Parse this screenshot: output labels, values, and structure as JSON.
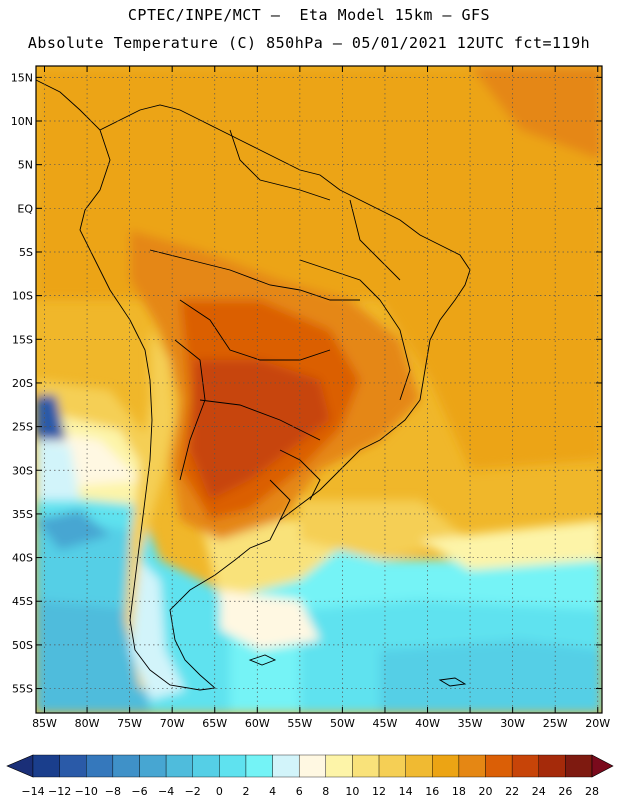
{
  "header": {
    "line1": "CPTEC/INPE/MCT –  Eta Model 15km – GFS",
    "line2": "Absolute Temperature (C) 850hPa – 05/01/2021 12UTC fct=119h"
  },
  "map": {
    "lat_labels": [
      "15N",
      "10N",
      "5N",
      "EQ",
      "5S",
      "10S",
      "15S",
      "20S",
      "25S",
      "30S",
      "35S",
      "40S",
      "45S",
      "50S",
      "55S"
    ],
    "lon_labels": [
      "85W",
      "80W",
      "75W",
      "70W",
      "65W",
      "60W",
      "55W",
      "50W",
      "45W",
      "40W",
      "35W",
      "30W",
      "25W",
      "20W"
    ]
  },
  "colorbar": {
    "labels": [
      "-14",
      "-12",
      "-10",
      "-8",
      "-6",
      "-4",
      "-2",
      "0",
      "2",
      "4",
      "6",
      "8",
      "10",
      "12",
      "14",
      "16",
      "18",
      "20",
      "22",
      "24",
      "26",
      "28"
    ],
    "colors": [
      "#1a3e8c",
      "#2a5aa8",
      "#3578bc",
      "#3f91c8",
      "#47a6d2",
      "#4fbcdc",
      "#55cfe6",
      "#5fe2ef",
      "#74f3f6",
      "#d2f4fa",
      "#fff8e2",
      "#fdf4a8",
      "#f9e27a",
      "#f5cf55",
      "#f0ba32",
      "#eca414",
      "#e58714",
      "#db5f06",
      "#c74408",
      "#a52a0a",
      "#7e1a10"
    ],
    "under_color": "#1a2f78",
    "over_color": "#7a0a1c"
  }
}
